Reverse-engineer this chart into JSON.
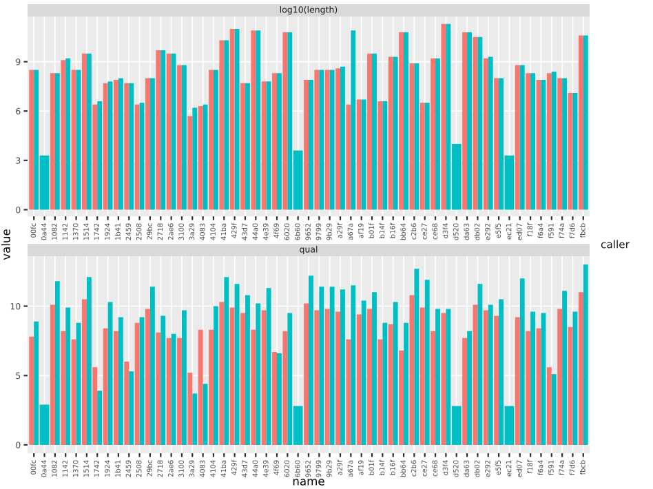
{
  "chart_data": [
    {
      "type": "bar",
      "title": "log10(length)",
      "ylabel": "value",
      "annotations": [
        "caller"
      ],
      "grid": true,
      "ylim": [
        -0.4,
        11.75
      ],
      "yticks": [
        0,
        3,
        6,
        9
      ],
      "categories": [
        "00fc",
        "0a44",
        "1082",
        "1142",
        "1370",
        "1514",
        "1742",
        "1924",
        "1b41",
        "2459",
        "2508",
        "29bc",
        "2718",
        "2ae6",
        "3100",
        "3a29",
        "4083",
        "4104",
        "41ba",
        "429f",
        "43d7",
        "44a0",
        "4e39",
        "4f69",
        "6020",
        "6b60",
        "9652",
        "9799",
        "9b29",
        "a29f",
        "a67a",
        "af19",
        "b01f",
        "b14f",
        "b16f",
        "bb64",
        "c2b6",
        "ce27",
        "ce68",
        "d3f4",
        "d520",
        "da63",
        "db02",
        "e292",
        "e5f5",
        "ec21",
        "ed07",
        "f18f",
        "f6a4",
        "f591",
        "f74a",
        "f7d6",
        "fbcb"
      ],
      "series": [
        {
          "color": "#f8766d",
          "values": [
            8.5,
            null,
            8.3,
            9.1,
            8.5,
            9.5,
            6.4,
            7.7,
            7.9,
            7.7,
            6.4,
            8.0,
            9.7,
            9.5,
            8.8,
            5.7,
            6.3,
            8.5,
            10.3,
            11.0,
            7.7,
            10.9,
            7.8,
            8.3,
            10.8,
            null,
            7.9,
            8.5,
            8.5,
            8.6,
            6.4,
            6.7,
            9.5,
            6.6,
            9.3,
            10.8,
            8.9,
            6.5,
            9.2,
            11.3,
            null,
            10.8,
            10.5,
            9.2,
            8.0,
            null,
            8.8,
            8.3,
            7.9,
            8.3,
            8.0,
            7.1,
            10.6
          ]
        },
        {
          "color": "#00bfc4",
          "values": [
            8.5,
            3.3,
            8.3,
            9.2,
            8.5,
            9.5,
            6.6,
            7.8,
            8.0,
            7.7,
            6.5,
            8.0,
            9.7,
            9.5,
            8.8,
            6.2,
            6.4,
            8.5,
            10.3,
            11.0,
            7.7,
            10.9,
            7.8,
            8.3,
            10.8,
            3.6,
            7.9,
            8.5,
            8.5,
            8.7,
            10.9,
            6.7,
            9.5,
            6.6,
            9.3,
            10.8,
            8.9,
            6.5,
            9.2,
            11.3,
            4.0,
            10.8,
            10.5,
            9.3,
            8.0,
            3.3,
            8.8,
            8.3,
            7.9,
            8.4,
            8.0,
            7.1,
            10.6
          ]
        }
      ]
    },
    {
      "type": "bar",
      "title": "qual",
      "xlabel": "name",
      "grid": true,
      "ylim": [
        -0.6,
        13.6
      ],
      "yticks": [
        0,
        5,
        10
      ],
      "categories": [
        "00fc",
        "0a44",
        "1082",
        "1142",
        "1370",
        "1514",
        "1742",
        "1924",
        "1b41",
        "2459",
        "2508",
        "29bc",
        "2718",
        "2ae6",
        "3100",
        "3a29",
        "4083",
        "4104",
        "41ba",
        "429f",
        "43d7",
        "44a0",
        "4e39",
        "4f69",
        "6020",
        "6b60",
        "9652",
        "9799",
        "9b29",
        "a29f",
        "a67a",
        "af19",
        "b01f",
        "b14f",
        "b16f",
        "bb64",
        "c2b6",
        "ce27",
        "ce68",
        "d3f4",
        "d520",
        "da63",
        "db02",
        "e292",
        "e5f5",
        "ec21",
        "ed07",
        "f18f",
        "f6a4",
        "f591",
        "f74a",
        "f7d6",
        "fbcb"
      ],
      "series": [
        {
          "color": "#f8766d",
          "values": [
            7.8,
            null,
            10.1,
            8.2,
            7.6,
            10.5,
            5.6,
            8.4,
            8.2,
            6.0,
            8.8,
            9.8,
            8.1,
            7.7,
            7.7,
            5.2,
            8.3,
            8.3,
            10.3,
            9.9,
            9.5,
            8.3,
            9.7,
            6.7,
            8.2,
            null,
            10.2,
            9.7,
            9.8,
            9.6,
            7.6,
            9.4,
            9.8,
            7.6,
            8.7,
            6.8,
            10.8,
            9.9,
            8.2,
            9.5,
            null,
            7.7,
            10.1,
            9.7,
            9.3,
            null,
            9.2,
            8.2,
            8.4,
            5.6,
            9.8,
            8.5,
            11.0
          ]
        },
        {
          "color": "#00bfc4",
          "values": [
            8.9,
            2.9,
            11.8,
            9.9,
            8.8,
            12.1,
            3.9,
            10.3,
            9.2,
            5.3,
            9.2,
            11.4,
            9.3,
            8.0,
            9.7,
            3.7,
            4.4,
            10.0,
            12.1,
            11.6,
            10.8,
            10.2,
            11.3,
            6.6,
            9.5,
            2.8,
            12.2,
            11.4,
            11.4,
            11.2,
            11.5,
            10.4,
            11.0,
            8.8,
            10.3,
            8.8,
            12.7,
            11.9,
            9.8,
            9.8,
            2.8,
            8.2,
            11.6,
            10.1,
            10.5,
            2.8,
            12.0,
            9.6,
            9.5,
            5.1,
            11.1,
            9.6,
            13.0
          ]
        }
      ]
    }
  ]
}
